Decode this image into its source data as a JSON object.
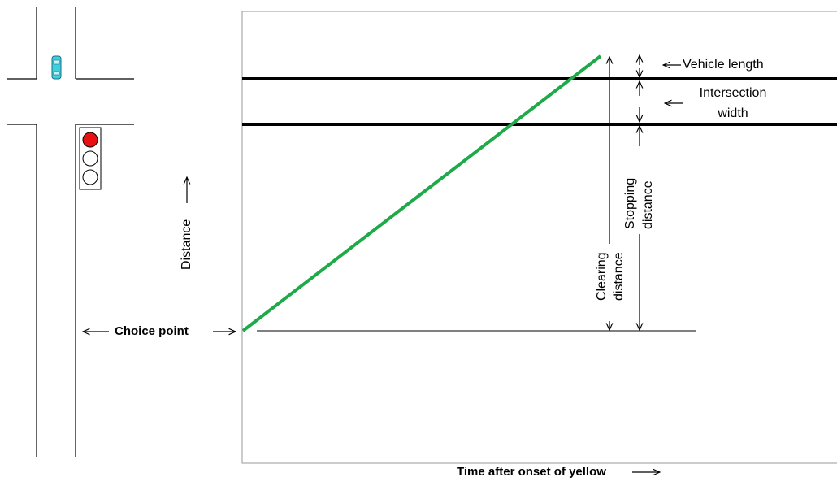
{
  "labels": {
    "vehicle_length": "Vehicle length",
    "intersection_width": [
      "Intersection",
      "width"
    ],
    "stopping_distance": [
      "Stopping",
      "distance"
    ],
    "clearing_distance": [
      "Clearing",
      "distance"
    ],
    "distance_axis": "Distance",
    "choice_point": "Choice point",
    "time_axis": "Time after onset of yellow"
  }
}
